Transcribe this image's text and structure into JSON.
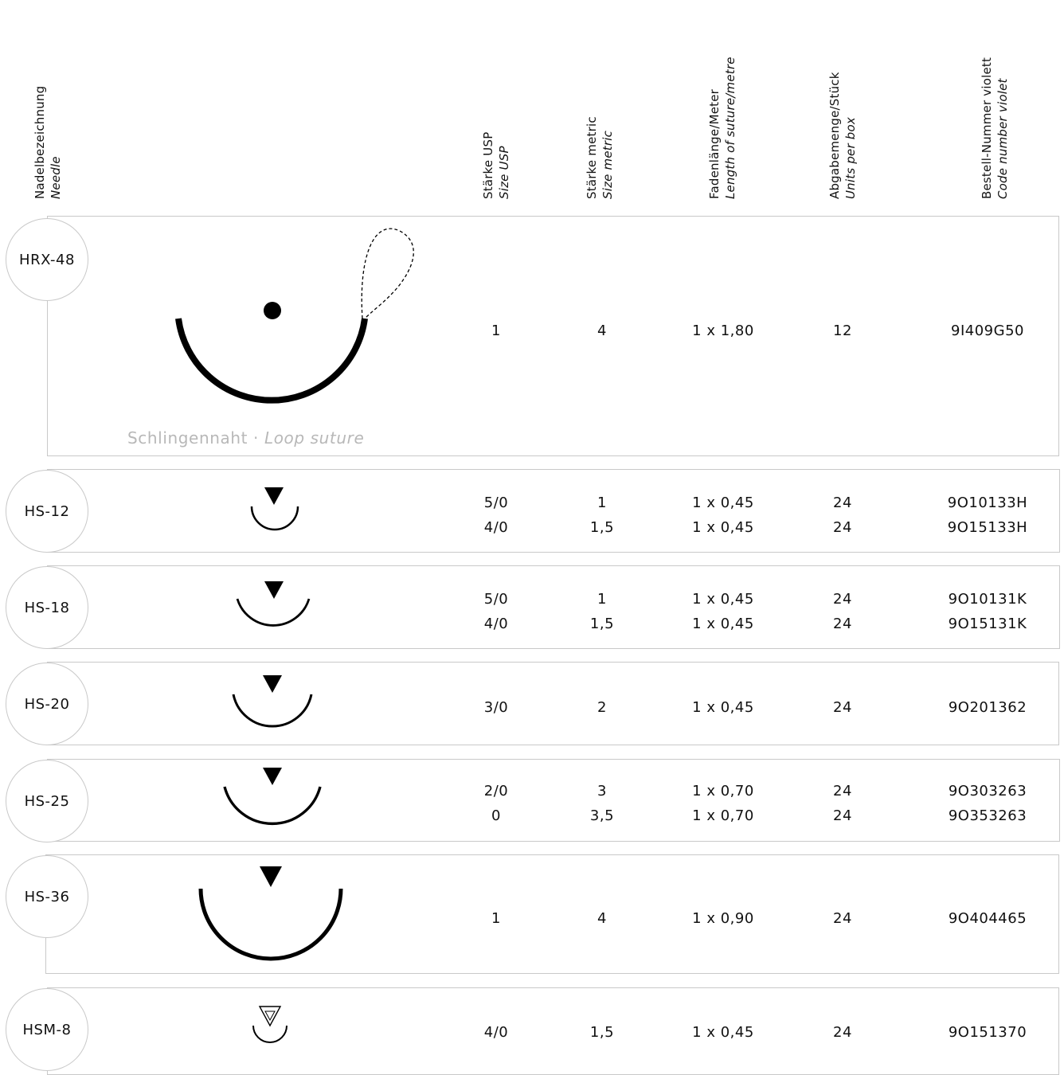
{
  "header": {
    "needle": {
      "de": "Nadelbezeichnung",
      "en": "Needle"
    },
    "size_usp": {
      "de": "Stärke USP",
      "en": "Size USP"
    },
    "size_metric": {
      "de": "Stärke metric",
      "en": "Size metric"
    },
    "length": {
      "de": "Fadenlänge/Meter",
      "en": "Length of suture/metre"
    },
    "units": {
      "de": "Abgabemenge/Stück",
      "en": "Units per box"
    },
    "code": {
      "de": "Bestell-Nummer violett",
      "en": "Code number violet"
    }
  },
  "caption": {
    "de": "Schlingennaht · ",
    "en": "Loop suture"
  },
  "rows": [
    {
      "needle": "HRX-48",
      "usp": [
        "1"
      ],
      "metric": [
        "4"
      ],
      "length": [
        "1 x 1,80"
      ],
      "units": [
        "12"
      ],
      "code": [
        "9I409G50"
      ]
    },
    {
      "needle": "HS-12",
      "usp": [
        "5/0",
        "4/0"
      ],
      "metric": [
        "1",
        "1,5"
      ],
      "length": [
        "1 x 0,45",
        "1 x 0,45"
      ],
      "units": [
        "24",
        "24"
      ],
      "code": [
        "9O10133H",
        "9O15133H"
      ]
    },
    {
      "needle": "HS-18",
      "usp": [
        "5/0",
        "4/0"
      ],
      "metric": [
        "1",
        "1,5"
      ],
      "length": [
        "1 x 0,45",
        "1 x 0,45"
      ],
      "units": [
        "24",
        "24"
      ],
      "code": [
        "9O10131K",
        "9O15131K"
      ]
    },
    {
      "needle": "HS-20",
      "usp": [
        "3/0"
      ],
      "metric": [
        "2"
      ],
      "length": [
        "1 x 0,45"
      ],
      "units": [
        "24"
      ],
      "code": [
        "9O201362"
      ]
    },
    {
      "needle": "HS-25",
      "usp": [
        "2/0",
        "0"
      ],
      "metric": [
        "3",
        "3,5"
      ],
      "length": [
        "1 x 0,70",
        "1 x 0,70"
      ],
      "units": [
        "24",
        "24"
      ],
      "code": [
        "9O303263",
        "9O353263"
      ]
    },
    {
      "needle": "HS-36",
      "usp": [
        "1"
      ],
      "metric": [
        "4"
      ],
      "length": [
        "1 x 0,90"
      ],
      "units": [
        "24"
      ],
      "code": [
        "9O404465"
      ]
    },
    {
      "needle": "HSM-8",
      "usp": [
        "4/0"
      ],
      "metric": [
        "1,5"
      ],
      "length": [
        "1 x 0,45"
      ],
      "units": [
        "24"
      ],
      "code": [
        "9O151370"
      ]
    }
  ]
}
